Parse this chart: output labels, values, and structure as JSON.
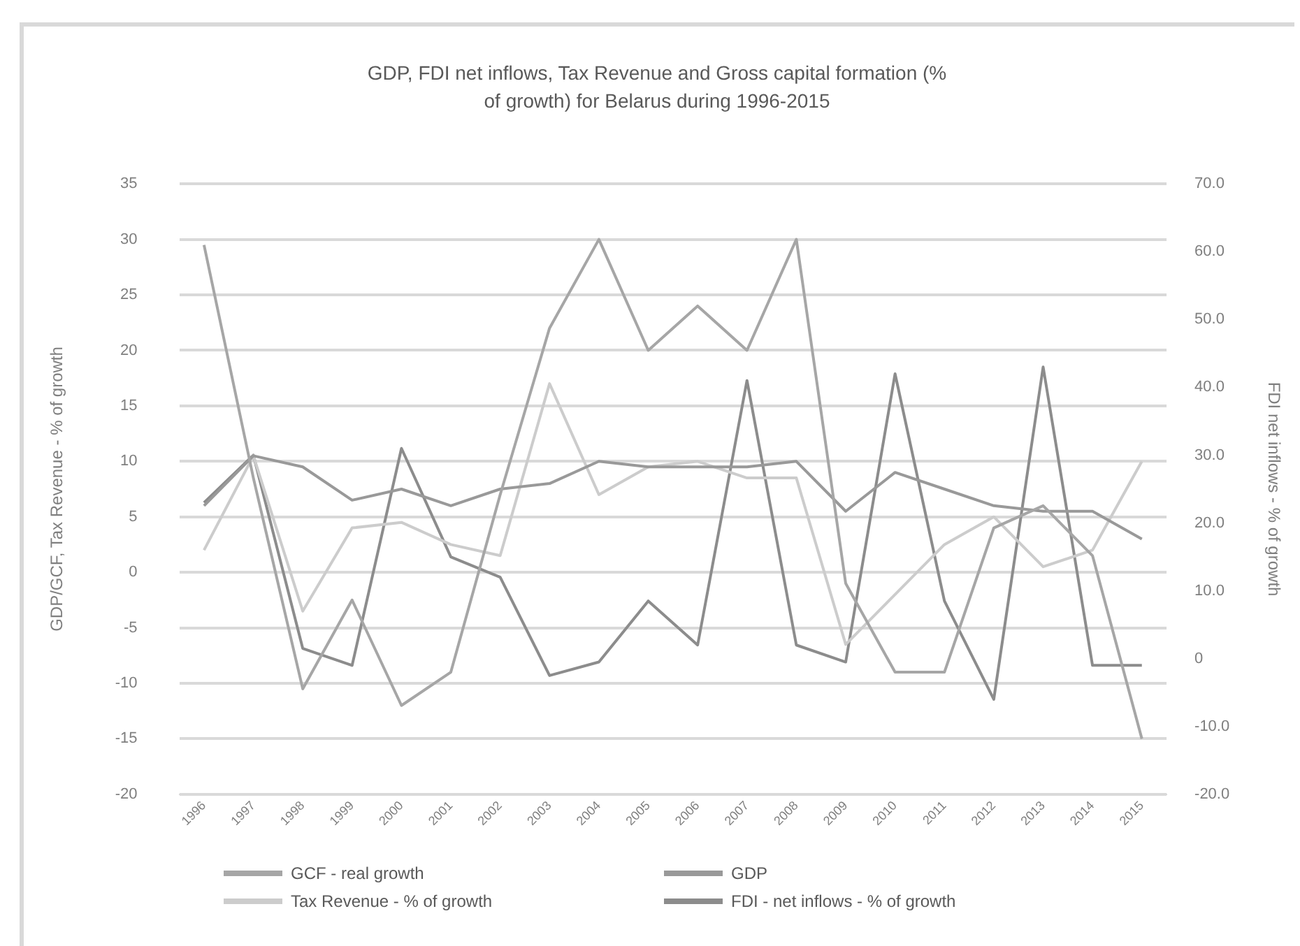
{
  "chart_data": {
    "type": "line",
    "title": "GDP, FDI net inflows, Tax Revenue and Gross capital formation (% of growth) for Belarus during 1996-2015",
    "ylabel": "GDP/GCF, Tax Revenue - % of growth",
    "y2label": "FDI net inflows - % of growth",
    "categories": [
      "1996",
      "1997",
      "1998",
      "1999",
      "2000",
      "2001",
      "2002",
      "2003",
      "2004",
      "2005",
      "2006",
      "2007",
      "2008",
      "2009",
      "2010",
      "2011",
      "2012",
      "2013",
      "2014",
      "2015"
    ],
    "series": [
      {
        "name": "GCF - real growth",
        "color": "#a6a6a6",
        "values": [
          29.5,
          8.5,
          -10.5,
          -2.5,
          -12,
          -9,
          7,
          22,
          30,
          20,
          24,
          20,
          30,
          -1,
          -9,
          -9,
          4,
          6,
          1.5,
          -15
        ]
      },
      {
        "name": "GDP",
        "color": "#999999",
        "values": [
          6,
          10.5,
          9.5,
          6.5,
          7.5,
          6,
          7.5,
          8,
          10,
          9.5,
          9.5,
          9.5,
          10,
          5.5,
          9,
          7.5,
          6,
          5.5,
          5.5,
          3
        ]
      },
      {
        "name": "Tax Revenue - % of growth",
        "color": "#cccccc",
        "values": [
          2,
          10.5,
          -3.5,
          4,
          4.5,
          2.5,
          1.5,
          17,
          7,
          9.5,
          10,
          8.5,
          8.5,
          -6.5,
          -2,
          2.5,
          5,
          0.5,
          2,
          10
        ]
      },
      {
        "name": "FDI - net inflows - % of growth",
        "color": "#8c8c8c",
        "axis": "y2",
        "values": [
          23,
          30,
          1.5,
          -1,
          31,
          15,
          12,
          -2.5,
          -0.5,
          8.5,
          2,
          41,
          2,
          -0.5,
          42,
          8.5,
          -6,
          43,
          -1,
          -1
        ]
      }
    ],
    "ylim": [
      -20,
      35
    ],
    "yticks": [
      -20,
      -15,
      -10,
      -5,
      0,
      5,
      10,
      15,
      20,
      25,
      30,
      35
    ],
    "y2lim": [
      -20,
      70
    ],
    "y2ticks": [
      {
        "value": -20,
        "label": "-20.0"
      },
      {
        "value": -10,
        "label": "-10.0"
      },
      0,
      {
        "value": 10,
        "label": "10.0"
      },
      {
        "value": 20,
        "label": "20.0"
      },
      {
        "value": 30,
        "label": "30.0"
      },
      {
        "value": 40,
        "label": "40.0"
      },
      {
        "value": 50,
        "label": "50.0"
      },
      {
        "value": 60,
        "label": "60.0"
      },
      {
        "value": 70,
        "label": "70.0"
      }
    ],
    "grid": "y",
    "legend": "bottom",
    "marker": "none",
    "line_style": "solid"
  }
}
